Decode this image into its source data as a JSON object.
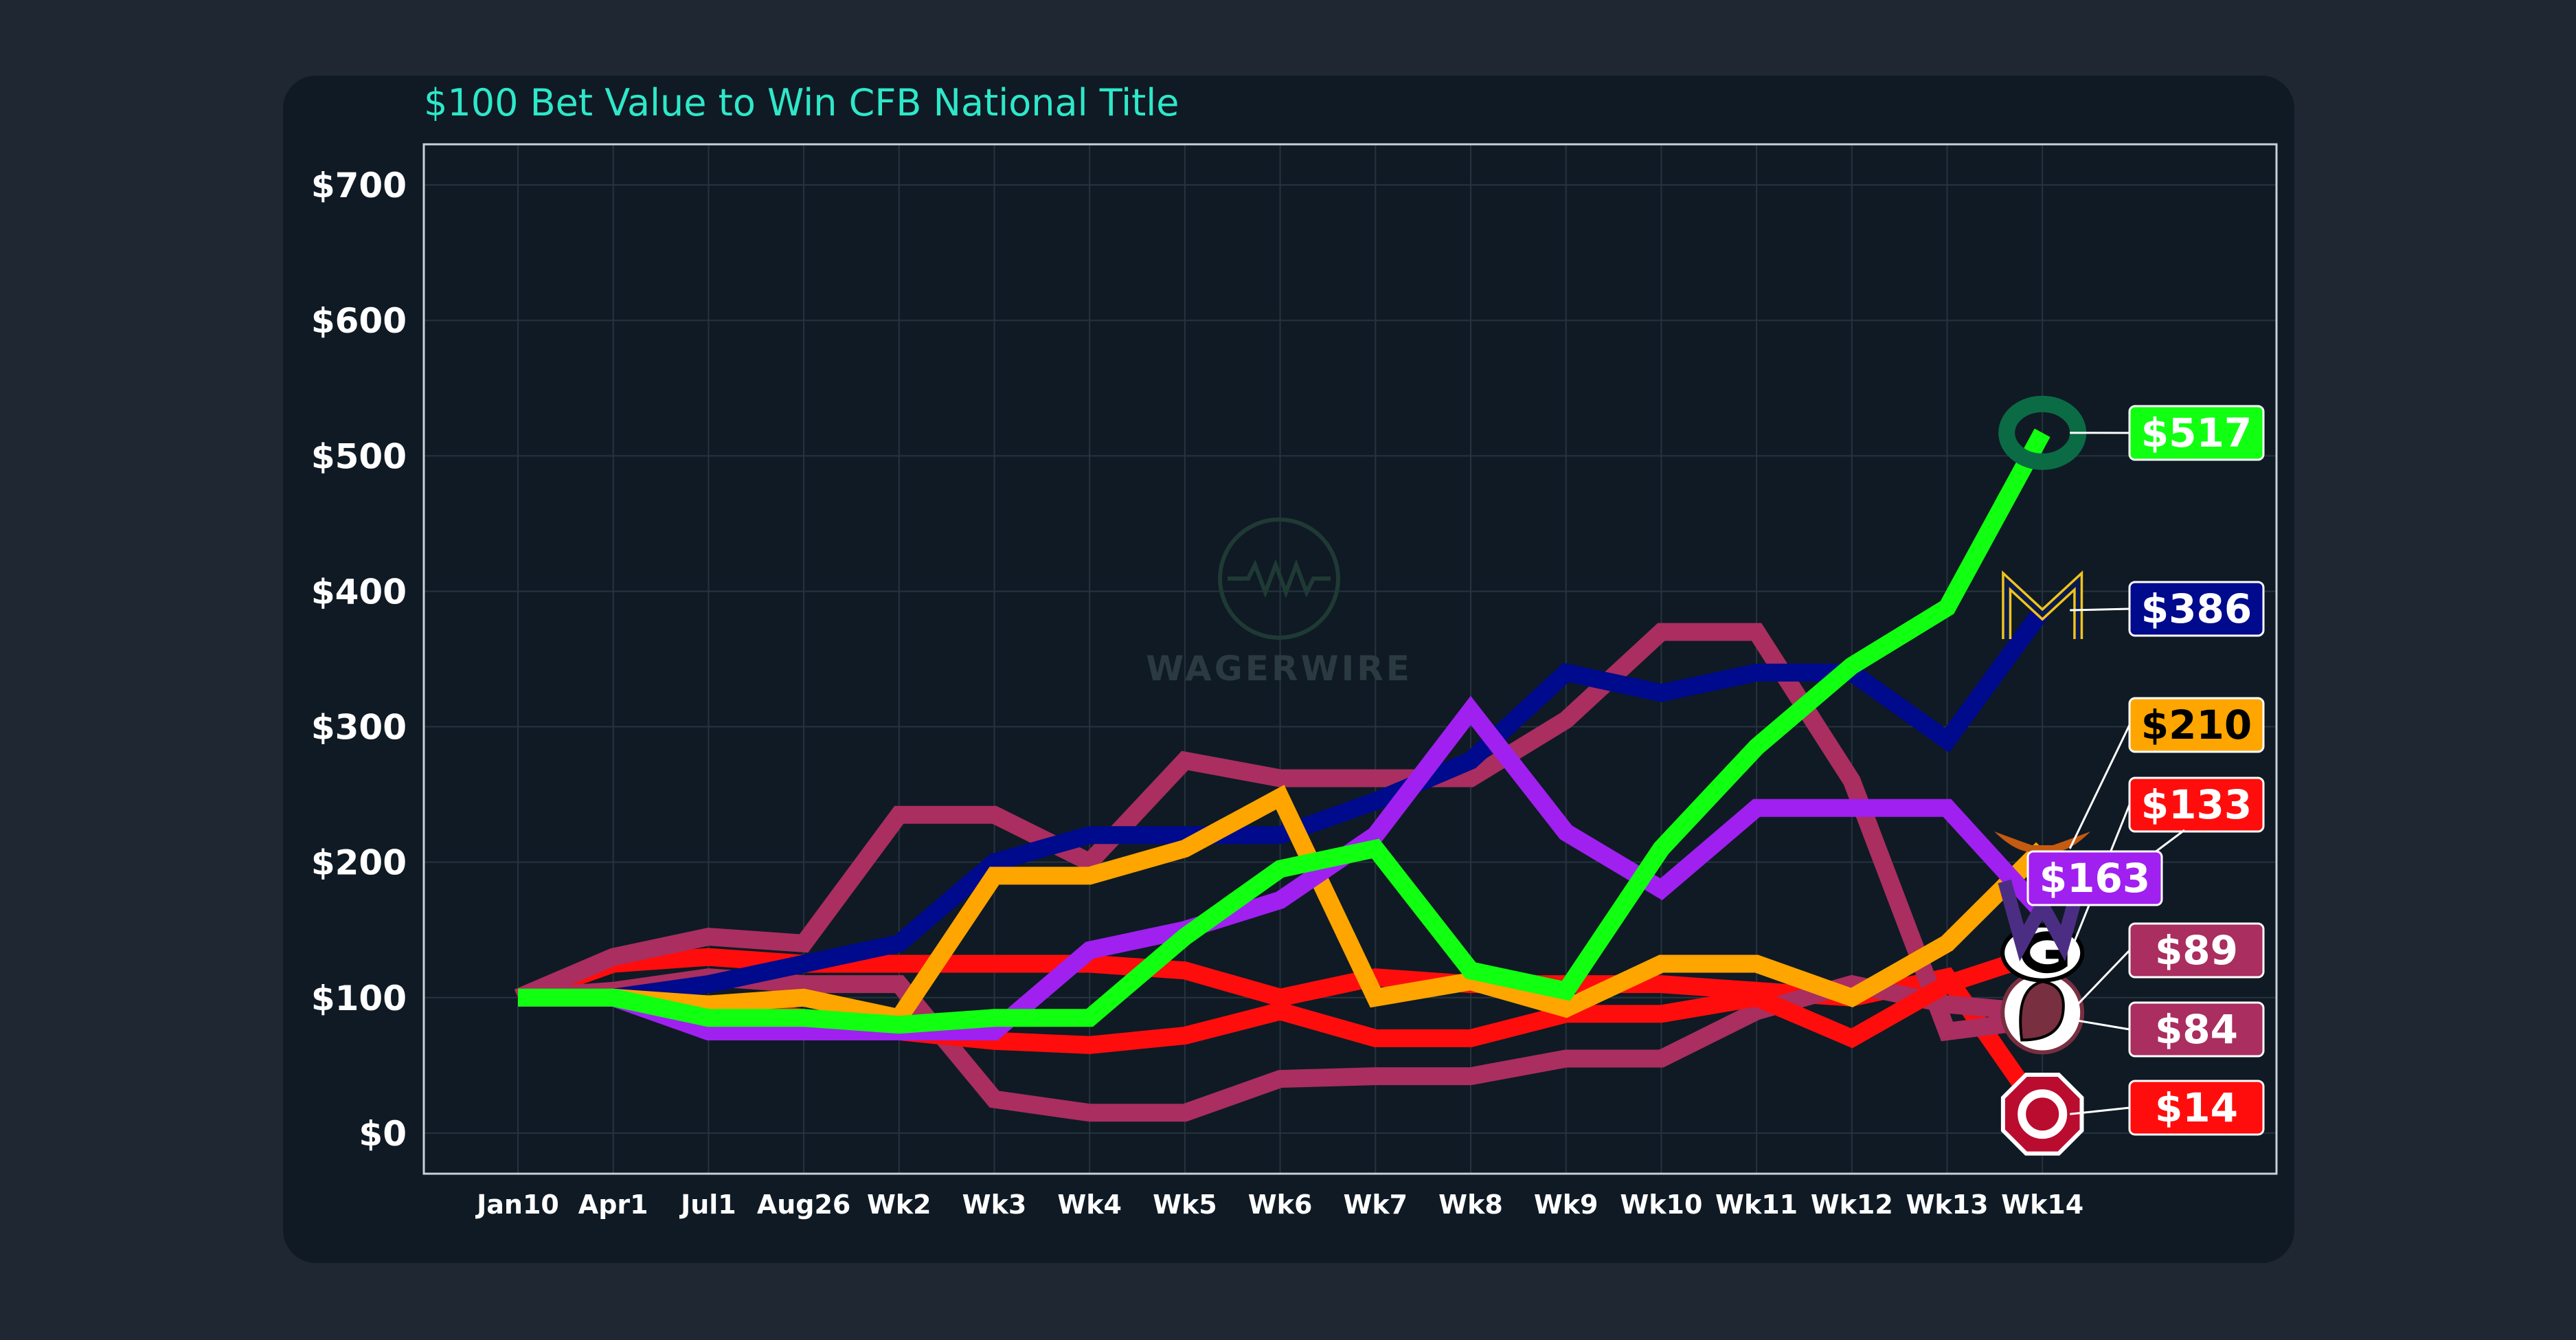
{
  "chart_data": {
    "type": "line",
    "title": "$100 Bet Value to Win CFB National Title",
    "watermark": "WAGERWIRE",
    "categories": [
      "Jan10",
      "Apr1",
      "Jul1",
      "Aug26",
      "Wk2",
      "Wk3",
      "Wk4",
      "Wk5",
      "Wk6",
      "Wk7",
      "Wk8",
      "Wk9",
      "Wk10",
      "Wk11",
      "Wk12",
      "Wk13",
      "Wk14"
    ],
    "ylim": [
      -30,
      730
    ],
    "yticks": [
      0,
      100,
      200,
      300,
      400,
      500,
      600,
      700
    ],
    "ytick_labels": [
      "$0",
      "$100",
      "$200",
      "$300",
      "$400",
      "$500",
      "$600",
      "$700"
    ],
    "xlabel": "",
    "ylabel": "",
    "grid": true,
    "series": [
      {
        "name": "Ohio State",
        "color": "#ff0d0d",
        "end_label": "$14",
        "logo": "ohio-state-logo",
        "values": [
          100,
          125,
          130,
          125,
          125,
          125,
          125,
          120,
          100,
          115,
          110,
          110,
          110,
          105,
          100,
          115,
          14
        ]
      },
      {
        "name": "Alabama",
        "color": "#aa2e5f",
        "end_label": "$84",
        "logo": "crimson-logo",
        "values": [
          100,
          130,
          145,
          140,
          235,
          235,
          200,
          275,
          262,
          262,
          262,
          305,
          370,
          370,
          260,
          75,
          84
        ]
      },
      {
        "name": "Florida State",
        "color": "#aa2e5f",
        "end_label": "$89",
        "logo": "florida-state-logo",
        "values": [
          100,
          105,
          115,
          110,
          110,
          25,
          15,
          15,
          40,
          42,
          42,
          55,
          55,
          90,
          110,
          95,
          89
        ]
      },
      {
        "name": "Georgia",
        "color": "#ff0d0d",
        "end_label": "$133",
        "logo": "georgia-logo",
        "values": [
          100,
          100,
          95,
          85,
          75,
          68,
          65,
          72,
          90,
          70,
          70,
          88,
          88,
          100,
          70,
          110,
          133
        ]
      },
      {
        "name": "Michigan",
        "color": "#000a8c",
        "end_label": "$386",
        "logo": "michigan-logo",
        "values": [
          100,
          100,
          110,
          125,
          140,
          200,
          220,
          220,
          220,
          245,
          275,
          340,
          325,
          340,
          340,
          290,
          386
        ]
      },
      {
        "name": "Texas",
        "color": "#ffa500",
        "end_label": "$210",
        "logo": "texas-logo",
        "values": [
          100,
          100,
          95,
          100,
          85,
          190,
          190,
          210,
          248,
          100,
          112,
          92,
          125,
          125,
          100,
          140,
          210
        ]
      },
      {
        "name": "Washington",
        "color": "#a020f0",
        "end_label": "$163",
        "logo": "washington-logo",
        "values": [
          100,
          100,
          75,
          75,
          75,
          75,
          135,
          150,
          172,
          220,
          312,
          222,
          180,
          240,
          240,
          240,
          163
        ]
      },
      {
        "name": "Oregon",
        "color": "#11ff11",
        "end_label": "$517",
        "logo": "oregon-logo",
        "values": [
          100,
          100,
          85,
          85,
          80,
          85,
          85,
          145,
          195,
          210,
          120,
          105,
          210,
          285,
          345,
          388,
          517
        ]
      }
    ]
  }
}
